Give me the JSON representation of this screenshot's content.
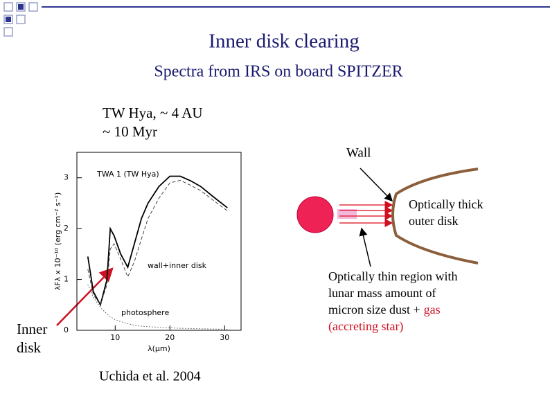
{
  "title": "Inner disk clearing",
  "subtitle": "Spectra from IRS on board SPITZER",
  "object_lines": [
    "TW Hya, ~ 4 AU",
    "~ 10 Myr"
  ],
  "citation": "Uchida et al. 2004",
  "inner_disk_lines": [
    "Inner",
    "disk"
  ],
  "diagram": {
    "wall": "Wall",
    "outer_lines": [
      "Optically thick",
      "outer disk"
    ],
    "thin_lines": [
      "Optically thin region with",
      "lunar mass amount of"
    ],
    "dust_text": "micron size dust +",
    "gas_text": "gas",
    "accreting_text": "(accreting star)"
  },
  "chart_data": {
    "type": "line",
    "annotations": [
      "TWA 1 (TW Hya)",
      "wall+inner disk",
      "photosphere"
    ],
    "xlabel": "λ(μm)",
    "ylabel": "λFλ x 10⁻¹⁰ (erg cm⁻² s⁻¹)",
    "x": [
      5,
      6,
      7.3,
      8.5,
      9.1,
      9.8,
      11,
      12.3,
      13.5,
      14.8,
      16,
      18,
      20,
      21.9,
      23.8,
      25.6,
      28,
      30.5
    ],
    "series": [
      {
        "name": "TWA 1 (TW Hya)",
        "color": "#000000",
        "values": [
          1.45,
          0.76,
          0.5,
          1.0,
          2.0,
          1.86,
          1.5,
          1.24,
          1.7,
          2.2,
          2.5,
          2.83,
          3.03,
          3.03,
          2.94,
          2.83,
          2.62,
          2.41
        ]
      },
      {
        "name": "wall+inner disk",
        "color": "#444444",
        "values": [
          1.2,
          0.7,
          0.5,
          0.9,
          1.6,
          1.7,
          1.4,
          1.05,
          1.35,
          1.8,
          2.2,
          2.6,
          2.9,
          2.95,
          2.85,
          2.75,
          2.55,
          2.35
        ]
      },
      {
        "name": "photosphere",
        "color": "#555555",
        "values": [
          0.9,
          0.65,
          0.45,
          0.32,
          0.27,
          0.22,
          0.17,
          0.13,
          0.1,
          0.08,
          0.07,
          0.06,
          0.05,
          0.04,
          0.035,
          0.03,
          0.025,
          0.02
        ]
      }
    ],
    "xlim": [
      3,
      33
    ],
    "ylim": [
      0,
      3.5
    ],
    "xticks": [
      10,
      20,
      30
    ],
    "yticks": [
      0,
      1,
      2,
      3
    ]
  }
}
